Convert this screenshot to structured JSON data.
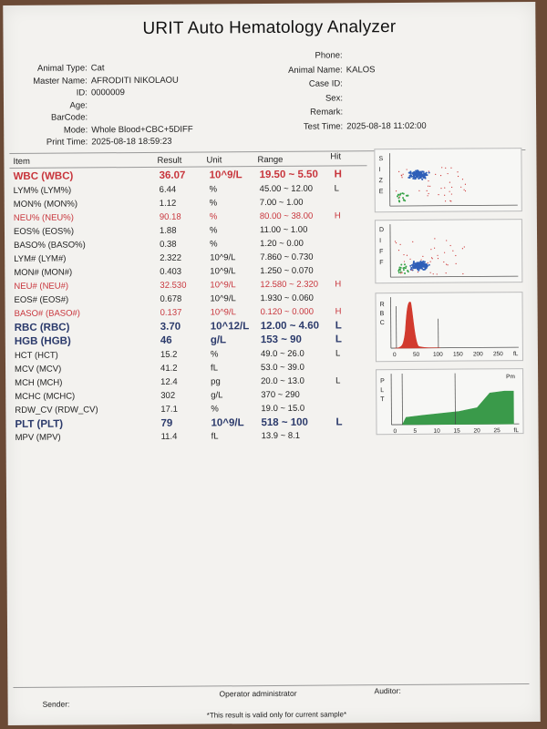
{
  "title": "URIT Auto Hematology Analyzer",
  "patient_left": [
    {
      "label": "Animal Type:",
      "value": "Cat"
    },
    {
      "label": "Master Name:",
      "value": "AFRODITI NIKOLAOU"
    },
    {
      "label": "ID:",
      "value": "0000009"
    },
    {
      "label": "Age:",
      "value": ""
    },
    {
      "label": "BarCode:",
      "value": ""
    },
    {
      "label": "Mode:",
      "value": "Whole Blood+CBC+5DIFF"
    },
    {
      "label": "Print Time:",
      "value": "2025-08-18  18:59:23"
    }
  ],
  "patient_right": [
    {
      "label": "Phone:",
      "value": ""
    },
    {
      "label": "Animal Name:",
      "value": "KALOS"
    },
    {
      "label": "Case ID:",
      "value": ""
    },
    {
      "label": "Sex:",
      "value": ""
    },
    {
      "label": "Remark:",
      "value": ""
    },
    {
      "label": "Test Time:",
      "value": "2025-08-18  11:02:00"
    }
  ],
  "columns": {
    "item": "Item",
    "result": "Result",
    "unit": "Unit",
    "range": "Range",
    "hit": "Hit"
  },
  "results": [
    {
      "item": "WBC (WBC)",
      "result": "36.07",
      "unit": "10^9/L",
      "range": "19.50 ~ 5.50",
      "hit": "H",
      "style": "big red"
    },
    {
      "item": "LYM% (LYM%)",
      "result": "6.44",
      "unit": "%",
      "range": "45.00 ~ 12.00",
      "hit": "L",
      "style": ""
    },
    {
      "item": "MON% (MON%)",
      "result": "1.12",
      "unit": "%",
      "range": "7.00 ~ 1.00",
      "hit": "",
      "style": ""
    },
    {
      "item": "NEU% (NEU%)",
      "result": "90.18",
      "unit": "%",
      "range": "80.00 ~ 38.00",
      "hit": "H",
      "style": "red"
    },
    {
      "item": "EOS% (EOS%)",
      "result": "1.88",
      "unit": "%",
      "range": "11.00 ~ 1.00",
      "hit": "",
      "style": ""
    },
    {
      "item": "BASO% (BASO%)",
      "result": "0.38",
      "unit": "%",
      "range": "1.20 ~ 0.00",
      "hit": "",
      "style": ""
    },
    {
      "item": "LYM# (LYM#)",
      "result": "2.322",
      "unit": "10^9/L",
      "range": "7.860 ~ 0.730",
      "hit": "",
      "style": ""
    },
    {
      "item": "MON# (MON#)",
      "result": "0.403",
      "unit": "10^9/L",
      "range": "1.250 ~ 0.070",
      "hit": "",
      "style": ""
    },
    {
      "item": "NEU# (NEU#)",
      "result": "32.530",
      "unit": "10^9/L",
      "range": "12.580 ~ 2.320",
      "hit": "H",
      "style": "red"
    },
    {
      "item": "EOS# (EOS#)",
      "result": "0.678",
      "unit": "10^9/L",
      "range": "1.930 ~ 0.060",
      "hit": "",
      "style": ""
    },
    {
      "item": "BASO# (BASO#)",
      "result": "0.137",
      "unit": "10^9/L",
      "range": "0.120 ~ 0.000",
      "hit": "H",
      "style": "red"
    },
    {
      "item": "RBC (RBC)",
      "result": "3.70",
      "unit": "10^12/L",
      "range": "12.00 ~ 4.60",
      "hit": "L",
      "style": "big"
    },
    {
      "item": "HGB (HGB)",
      "result": "46",
      "unit": "g/L",
      "range": "153 ~ 90",
      "hit": "L",
      "style": "big"
    },
    {
      "item": "HCT (HCT)",
      "result": "15.2",
      "unit": "%",
      "range": "49.0 ~ 26.0",
      "hit": "L",
      "style": ""
    },
    {
      "item": "MCV (MCV)",
      "result": "41.2",
      "unit": "fL",
      "range": "53.0 ~ 39.0",
      "hit": "",
      "style": ""
    },
    {
      "item": "MCH (MCH)",
      "result": "12.4",
      "unit": "pg",
      "range": "20.0 ~ 13.0",
      "hit": "L",
      "style": ""
    },
    {
      "item": "MCHC (MCHC)",
      "result": "302",
      "unit": "g/L",
      "range": "370 ~ 290",
      "hit": "",
      "style": ""
    },
    {
      "item": "RDW_CV (RDW_CV)",
      "result": "17.1",
      "unit": "%",
      "range": "19.0 ~ 15.0",
      "hit": "",
      "style": ""
    },
    {
      "item": "PLT (PLT)",
      "result": "79",
      "unit": "10^9/L",
      "range": "518 ~ 100",
      "hit": "L",
      "style": "big"
    },
    {
      "item": "MPV (MPV)",
      "result": "11.4",
      "unit": "fL",
      "range": "13.9 ~ 8.1",
      "hit": "",
      "style": ""
    }
  ],
  "plots": {
    "size_label": [
      "S",
      "I",
      "Z",
      "E"
    ],
    "diff_label": [
      "D",
      "I",
      "F",
      "F"
    ],
    "rbc_label": [
      "R",
      "B",
      "C"
    ],
    "plt_label": [
      "P",
      "L",
      "T"
    ],
    "rbc_ticks": [
      "0",
      "50",
      "100",
      "150",
      "200",
      "250",
      "fL"
    ],
    "plt_ticks": [
      "0",
      "5",
      "10",
      "15",
      "20",
      "25",
      "fL"
    ],
    "plt_corner": "Pm",
    "rbc_color": "#d23a2e",
    "plt_color": "#3a9a4a",
    "scatter_blue": "#2f5fb8",
    "scatter_green": "#3aa34a",
    "scatter_red": "#cc3333"
  },
  "footer": {
    "operator": "Operator administrator",
    "auditor": "Auditor:",
    "sender": "Sender:",
    "note": "*This result is valid only for current sample*"
  }
}
